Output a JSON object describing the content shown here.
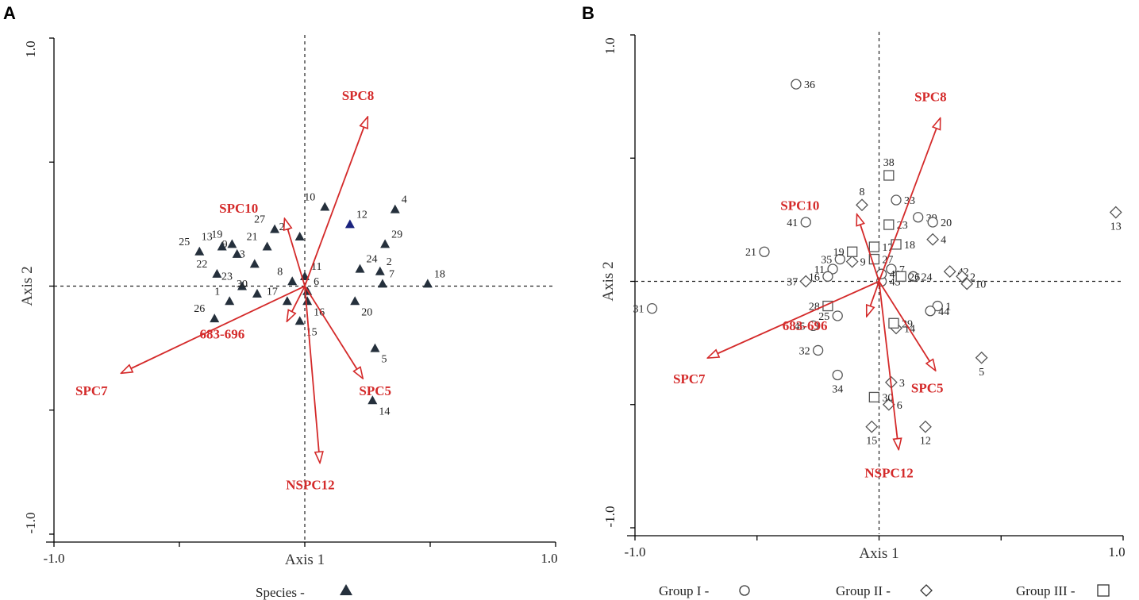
{
  "chart_data": [
    {
      "panel": "A",
      "type": "scatter",
      "xlabel": "Axis 1",
      "ylabel": "Axis 2",
      "xlim": [
        -1.0,
        1.0
      ],
      "ylim": [
        -1.0,
        1.0
      ],
      "x_ticks": [
        "-1.0",
        "1.0"
      ],
      "y_ticks": [
        "1.0",
        "-1.0"
      ],
      "legend": [
        {
          "label": "Species  -",
          "marker": "triangle"
        }
      ],
      "series": [
        {
          "name": "Species",
          "marker": "triangle",
          "points": [
            {
              "label": "1",
              "x": -0.3,
              "y": -0.06
            },
            {
              "label": "2",
              "x": 0.3,
              "y": 0.06
            },
            {
              "label": "3",
              "x": -0.2,
              "y": 0.09
            },
            {
              "label": "4",
              "x": 0.36,
              "y": 0.31
            },
            {
              "label": "5",
              "x": 0.28,
              "y": -0.25
            },
            {
              "label": "6",
              "x": 0.01,
              "y": -0.02
            },
            {
              "label": "7",
              "x": 0.31,
              "y": 0.01
            },
            {
              "label": "8",
              "x": -0.05,
              "y": 0.02
            },
            {
              "label": "9",
              "x": -0.27,
              "y": 0.13
            },
            {
              "label": "10",
              "x": 0.08,
              "y": 0.32
            },
            {
              "label": "11",
              "x": 0.0,
              "y": 0.04
            },
            {
              "label": "12",
              "x": 0.18,
              "y": 0.25
            },
            {
              "label": "13",
              "x": -0.33,
              "y": 0.16
            },
            {
              "label": "14",
              "x": 0.27,
              "y": -0.46
            },
            {
              "label": "15",
              "x": -0.02,
              "y": -0.14
            },
            {
              "label": "16",
              "x": 0.01,
              "y": -0.06
            },
            {
              "label": "17",
              "x": -0.07,
              "y": -0.06
            },
            {
              "label": "18",
              "x": 0.49,
              "y": 0.01
            },
            {
              "label": "19",
              "x": -0.29,
              "y": 0.17
            },
            {
              "label": "20",
              "x": 0.2,
              "y": -0.06
            },
            {
              "label": "21",
              "x": -0.15,
              "y": 0.16
            },
            {
              "label": "22",
              "x": -0.35,
              "y": 0.05
            },
            {
              "label": "23",
              "x": -0.25,
              "y": 0.0
            },
            {
              "label": "24",
              "x": 0.22,
              "y": 0.07
            },
            {
              "label": "25",
              "x": -0.42,
              "y": 0.14
            },
            {
              "label": "26",
              "x": -0.36,
              "y": -0.13
            },
            {
              "label": "27",
              "x": -0.12,
              "y": 0.23
            },
            {
              "label": "28",
              "x": -0.02,
              "y": 0.2
            },
            {
              "label": "29",
              "x": 0.32,
              "y": 0.17
            },
            {
              "label": "30",
              "x": -0.19,
              "y": -0.03
            }
          ]
        }
      ],
      "vectors": [
        {
          "label": "SPC8",
          "x": 0.25,
          "y": 0.68
        },
        {
          "label": "SPC10",
          "x": -0.08,
          "y": 0.27
        },
        {
          "label": "SPC7",
          "x": -0.73,
          "y": -0.35
        },
        {
          "label": "683-696",
          "x": -0.07,
          "y": -0.14
        },
        {
          "label": "SPC5",
          "x": 0.23,
          "y": -0.37
        },
        {
          "label": "NSPC12",
          "x": 0.06,
          "y": -0.71
        }
      ]
    },
    {
      "panel": "B",
      "type": "scatter",
      "xlabel": "Axis 1",
      "ylabel": "Axis 2",
      "xlim": [
        -1.0,
        1.0
      ],
      "ylim": [
        -1.0,
        1.0
      ],
      "x_ticks": [
        "-1.0",
        "1.0"
      ],
      "y_ticks": [
        "1.0",
        "-1.0"
      ],
      "legend": [
        {
          "label": "Group I  -",
          "marker": "circle"
        },
        {
          "label": "Group II  -",
          "marker": "diamond"
        },
        {
          "label": "Group III  -",
          "marker": "square"
        }
      ],
      "series": [
        {
          "name": "Group I",
          "marker": "circle",
          "points": [
            {
              "label": "36",
              "x": -0.34,
              "y": 0.8
            },
            {
              "label": "33",
              "x": 0.07,
              "y": 0.33
            },
            {
              "label": "39",
              "x": 0.16,
              "y": 0.26
            },
            {
              "label": "20",
              "x": 0.22,
              "y": 0.24
            },
            {
              "label": "41",
              "x": -0.3,
              "y": 0.24
            },
            {
              "label": "21",
              "x": -0.47,
              "y": 0.12
            },
            {
              "label": "35",
              "x": -0.16,
              "y": 0.09
            },
            {
              "label": "11",
              "x": -0.19,
              "y": 0.05
            },
            {
              "label": "16",
              "x": -0.21,
              "y": 0.02
            },
            {
              "label": "7",
              "x": 0.05,
              "y": 0.05
            },
            {
              "label": "24",
              "x": 0.14,
              "y": 0.02
            },
            {
              "label": "43",
              "x": 0.01,
              "y": 0.0
            },
            {
              "label": "40",
              "x": 0.01,
              "y": 0.03
            },
            {
              "label": "1",
              "x": 0.24,
              "y": -0.1
            },
            {
              "label": "44",
              "x": 0.21,
              "y": -0.12
            },
            {
              "label": "25",
              "x": -0.17,
              "y": -0.14
            },
            {
              "label": "45",
              "x": -0.27,
              "y": -0.18
            },
            {
              "label": "32",
              "x": -0.25,
              "y": -0.28
            },
            {
              "label": "34",
              "x": -0.17,
              "y": -0.38
            },
            {
              "label": "31",
              "x": -0.93,
              "y": -0.11
            }
          ]
        },
        {
          "name": "Group II",
          "marker": "diamond",
          "points": [
            {
              "label": "13",
              "x": 0.97,
              "y": 0.28
            },
            {
              "label": "8",
              "x": -0.07,
              "y": 0.31
            },
            {
              "label": "4",
              "x": 0.22,
              "y": 0.17
            },
            {
              "label": "9",
              "x": -0.11,
              "y": 0.08
            },
            {
              "label": "37",
              "x": -0.3,
              "y": 0.0
            },
            {
              "label": "42",
              "x": 0.29,
              "y": 0.04
            },
            {
              "label": "2",
              "x": 0.34,
              "y": 0.02
            },
            {
              "label": "10",
              "x": 0.36,
              "y": -0.01
            },
            {
              "label": "14",
              "x": 0.07,
              "y": -0.19
            },
            {
              "label": "5",
              "x": 0.42,
              "y": -0.31
            },
            {
              "label": "3",
              "x": 0.05,
              "y": -0.41
            },
            {
              "label": "6",
              "x": 0.04,
              "y": -0.5
            },
            {
              "label": "15",
              "x": -0.03,
              "y": -0.59
            },
            {
              "label": "12",
              "x": 0.19,
              "y": -0.59
            }
          ]
        },
        {
          "name": "Group III",
          "marker": "square",
          "points": [
            {
              "label": "38",
              "x": 0.04,
              "y": 0.43
            },
            {
              "label": "23",
              "x": 0.04,
              "y": 0.23
            },
            {
              "label": "17",
              "x": -0.02,
              "y": 0.14
            },
            {
              "label": "18",
              "x": 0.07,
              "y": 0.15
            },
            {
              "label": "19",
              "x": -0.11,
              "y": 0.12
            },
            {
              "label": "27",
              "x": -0.02,
              "y": 0.09
            },
            {
              "label": "26",
              "x": 0.09,
              "y": 0.02
            },
            {
              "label": "28",
              "x": -0.21,
              "y": -0.1
            },
            {
              "label": "29",
              "x": 0.06,
              "y": -0.17
            },
            {
              "label": "30",
              "x": -0.02,
              "y": -0.47
            }
          ]
        }
      ],
      "vectors": [
        {
          "label": "SPC8",
          "x": 0.25,
          "y": 0.66
        },
        {
          "label": "SPC10",
          "x": -0.09,
          "y": 0.27
        },
        {
          "label": "SPC7",
          "x": -0.7,
          "y": -0.31
        },
        {
          "label": "683-696",
          "x": -0.05,
          "y": -0.14
        },
        {
          "label": "SPC5",
          "x": 0.23,
          "y": -0.36
        },
        {
          "label": "NSPC12",
          "x": 0.08,
          "y": -0.68
        }
      ]
    }
  ],
  "colors": {
    "vector": "#d42a2a",
    "marker_fill": "#25303c",
    "marker_accent": "#1a237e",
    "open_marker": "#555555",
    "axis": "#000000"
  }
}
